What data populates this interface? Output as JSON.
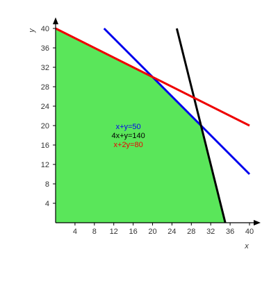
{
  "chart_data": {
    "type": "line",
    "title": "",
    "xlabel": "x",
    "ylabel": "y",
    "xlim": [
      0,
      40
    ],
    "ylim": [
      0,
      40
    ],
    "x_ticks": [
      4,
      8,
      12,
      16,
      20,
      24,
      28,
      32,
      36,
      40
    ],
    "y_ticks": [
      4,
      8,
      12,
      16,
      20,
      24,
      28,
      32,
      36,
      40
    ],
    "grid": false,
    "feasible_region": {
      "color": "#5ae65a",
      "vertices": [
        [
          0,
          0
        ],
        [
          0,
          40
        ],
        [
          20,
          30
        ],
        [
          30,
          20
        ],
        [
          35,
          0
        ]
      ]
    },
    "series": [
      {
        "name": "x+y=50",
        "color": "#0000ee",
        "points": [
          [
            10,
            40
          ],
          [
            40,
            10
          ]
        ]
      },
      {
        "name": "4x+y=140",
        "color": "#000000",
        "points": [
          [
            25,
            40
          ],
          [
            35,
            0
          ]
        ]
      },
      {
        "name": "x+2y=80",
        "color": "#ee0000",
        "points": [
          [
            0,
            40
          ],
          [
            40,
            20
          ]
        ]
      }
    ]
  }
}
